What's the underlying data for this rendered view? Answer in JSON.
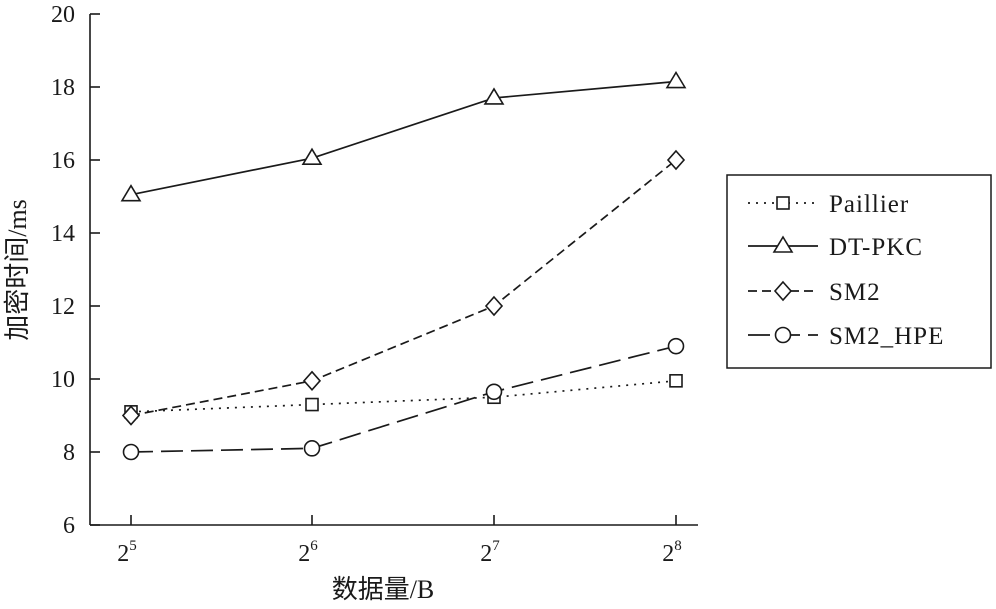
{
  "chart_data": {
    "type": "line",
    "xlabel": "数据量/B",
    "ylabel": "加密时间/ms",
    "ylim": [
      6,
      20
    ],
    "yticks": [
      6,
      8,
      10,
      12,
      14,
      16,
      18,
      20
    ],
    "x_ticks": [
      {
        "base": "2",
        "exp": "5"
      },
      {
        "base": "2",
        "exp": "6"
      },
      {
        "base": "2",
        "exp": "7"
      },
      {
        "base": "2",
        "exp": "8"
      }
    ],
    "x": [
      32,
      64,
      128,
      256
    ],
    "grid": false,
    "legend_position": "right",
    "series": [
      {
        "name": "Paillier",
        "marker": "square",
        "dash": "dotted",
        "values": [
          9.1,
          9.3,
          9.5,
          9.95
        ]
      },
      {
        "name": "DT-PKC",
        "marker": "triangle",
        "dash": "solid",
        "values": [
          15.05,
          16.05,
          17.7,
          18.15
        ]
      },
      {
        "name": "SM2",
        "marker": "diamond",
        "dash": "dashed",
        "values": [
          9.0,
          9.95,
          12.0,
          16.0
        ]
      },
      {
        "name": "SM2_HPE",
        "marker": "circle",
        "dash": "longdash",
        "values": [
          8.0,
          8.1,
          9.65,
          10.9
        ]
      }
    ]
  }
}
